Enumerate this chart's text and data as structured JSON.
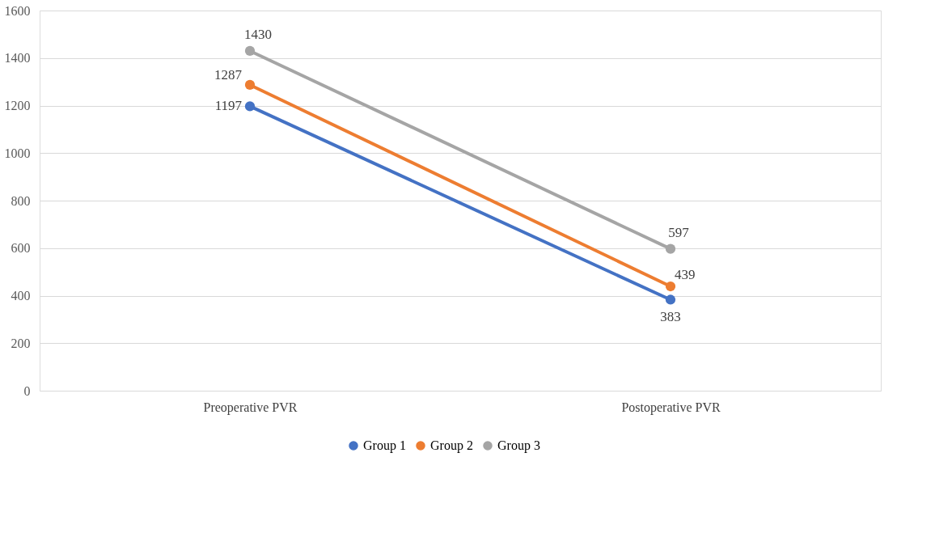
{
  "chart_data": {
    "type": "line",
    "categories": [
      "Preoperative PVR",
      "Postoperative PVR"
    ],
    "series": [
      {
        "name": "Group 1",
        "color": "#4472c4",
        "values": [
          1197,
          383
        ]
      },
      {
        "name": "Group 2",
        "color": "#ed7d31",
        "values": [
          1287,
          439
        ]
      },
      {
        "name": "Group 3",
        "color": "#a5a5a5",
        "values": [
          1430,
          597
        ]
      }
    ],
    "ylim": [
      0,
      1600
    ],
    "yticks": [
      0,
      200,
      400,
      600,
      800,
      1000,
      1200,
      1400,
      1600
    ],
    "grid": "y",
    "legend": "bottom",
    "marker": "circle",
    "line_style": "solid",
    "data_labels": true
  }
}
